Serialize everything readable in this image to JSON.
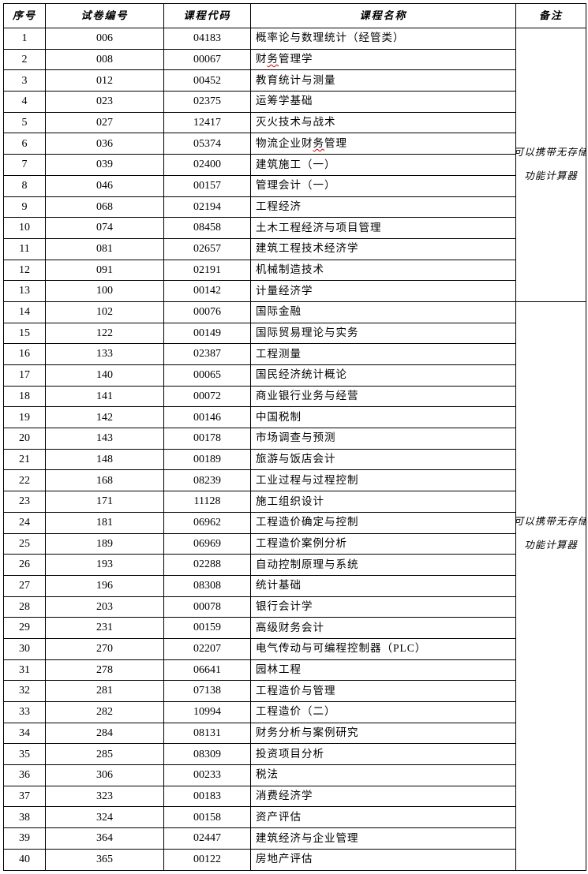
{
  "table": {
    "headers": [
      "序号",
      "试卷编号",
      "课程代码",
      "课程名称",
      "备注"
    ],
    "remarks": [
      {
        "rows": "1-13",
        "lines": [
          "可以携带无存储",
          "功能计算器"
        ]
      },
      {
        "rows": "14-40",
        "lines": [
          "可以携带无存储",
          "功能计算器"
        ]
      }
    ],
    "rows": [
      {
        "no": "1",
        "paper": "006",
        "code": "04183",
        "name": "概率论与数理统计（经管类）"
      },
      {
        "no": "2",
        "paper": "008",
        "code": "00067",
        "name": "财务管理学",
        "squiggle": [
          1,
          2
        ]
      },
      {
        "no": "3",
        "paper": "012",
        "code": "00452",
        "name": "教育统计与测量"
      },
      {
        "no": "4",
        "paper": "023",
        "code": "02375",
        "name": "运筹学基础"
      },
      {
        "no": "5",
        "paper": "027",
        "code": "12417",
        "name": "灭火技术与战术"
      },
      {
        "no": "6",
        "paper": "036",
        "code": "05374",
        "name": "物流企业财务管理",
        "squiggle": [
          5,
          6
        ]
      },
      {
        "no": "7",
        "paper": "039",
        "code": "02400",
        "name": "建筑施工（一）"
      },
      {
        "no": "8",
        "paper": "046",
        "code": "00157",
        "name": "管理会计（一）"
      },
      {
        "no": "9",
        "paper": "068",
        "code": "02194",
        "name": "工程经济"
      },
      {
        "no": "10",
        "paper": "074",
        "code": "08458",
        "name": "土木工程经济与项目管理"
      },
      {
        "no": "11",
        "paper": "081",
        "code": "02657",
        "name": "建筑工程技术经济学"
      },
      {
        "no": "12",
        "paper": "091",
        "code": "02191",
        "name": "机械制造技术"
      },
      {
        "no": "13",
        "paper": "100",
        "code": "00142",
        "name": "计量经济学"
      },
      {
        "no": "14",
        "paper": "102",
        "code": "00076",
        "name": "国际金融"
      },
      {
        "no": "15",
        "paper": "122",
        "code": "00149",
        "name": "国际贸易理论与实务"
      },
      {
        "no": "16",
        "paper": "133",
        "code": "02387",
        "name": "工程测量"
      },
      {
        "no": "17",
        "paper": "140",
        "code": "00065",
        "name": "国民经济统计概论"
      },
      {
        "no": "18",
        "paper": "141",
        "code": "00072",
        "name": "商业银行业务与经营"
      },
      {
        "no": "19",
        "paper": "142",
        "code": "00146",
        "name": "中国税制"
      },
      {
        "no": "20",
        "paper": "143",
        "code": "00178",
        "name": "市场调查与预测"
      },
      {
        "no": "21",
        "paper": "148",
        "code": "00189",
        "name": "旅游与饭店会计"
      },
      {
        "no": "22",
        "paper": "168",
        "code": "08239",
        "name": "工业过程与过程控制"
      },
      {
        "no": "23",
        "paper": "171",
        "code": "11128",
        "name": "施工组织设计"
      },
      {
        "no": "24",
        "paper": "181",
        "code": "06962",
        "name": "工程造价确定与控制"
      },
      {
        "no": "25",
        "paper": "189",
        "code": "06969",
        "name": "工程造价案例分析"
      },
      {
        "no": "26",
        "paper": "193",
        "code": "02288",
        "name": "自动控制原理与系统"
      },
      {
        "no": "27",
        "paper": "196",
        "code": "08308",
        "name": "统计基础"
      },
      {
        "no": "28",
        "paper": "203",
        "code": "00078",
        "name": "银行会计学"
      },
      {
        "no": "29",
        "paper": "231",
        "code": "00159",
        "name": "高级财务会计"
      },
      {
        "no": "30",
        "paper": "270",
        "code": "02207",
        "name": "电气传动与可编程控制器（PLC）"
      },
      {
        "no": "31",
        "paper": "278",
        "code": "06641",
        "name": "园林工程"
      },
      {
        "no": "32",
        "paper": "281",
        "code": "07138",
        "name": "工程造价与管理"
      },
      {
        "no": "33",
        "paper": "282",
        "code": "10994",
        "name": "工程造价（二）"
      },
      {
        "no": "34",
        "paper": "284",
        "code": "08131",
        "name": "财务分析与案例研究"
      },
      {
        "no": "35",
        "paper": "285",
        "code": "08309",
        "name": "投资项目分析"
      },
      {
        "no": "36",
        "paper": "306",
        "code": "00233",
        "name": "税法"
      },
      {
        "no": "37",
        "paper": "323",
        "code": "00183",
        "name": "消费经济学"
      },
      {
        "no": "38",
        "paper": "324",
        "code": "00158",
        "name": "资产评估"
      },
      {
        "no": "39",
        "paper": "364",
        "code": "02447",
        "name": "建筑经济与企业管理"
      },
      {
        "no": "40",
        "paper": "365",
        "code": "00122",
        "name": "房地产评估"
      }
    ],
    "colors": {
      "border": "#000000",
      "text": "#000000",
      "background": "#ffffff",
      "squiggle": "#d40000"
    }
  }
}
